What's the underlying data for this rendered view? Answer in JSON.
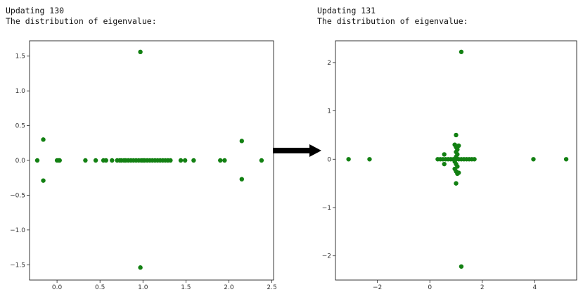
{
  "left_panel": {
    "line1": "Updating 130",
    "line2": "The distribution of eigenvalue:"
  },
  "right_panel": {
    "line1": "Updating 131",
    "line2": "The distribution of eigenvalue:"
  },
  "colors": {
    "points": "#128012",
    "arrow": "#000000",
    "axes": "#222222"
  },
  "chart_data": [
    {
      "type": "scatter",
      "title": "",
      "xlabel": "",
      "ylabel": "",
      "xlim": [
        -0.32,
        2.52
      ],
      "ylim": [
        -1.72,
        1.72
      ],
      "xticks": [
        0.0,
        0.5,
        1.0,
        1.5,
        2.0,
        2.5
      ],
      "xtick_labels": [
        "0.0",
        "0.5",
        "1.0",
        "1.5",
        "2.0",
        "2.5"
      ],
      "yticks": [
        -1.5,
        -1.0,
        -0.5,
        0.0,
        0.5,
        1.0,
        1.5
      ],
      "ytick_labels": [
        "−1.5",
        "−1.0",
        "−0.5",
        "0.0",
        "0.5",
        "1.0",
        "1.5"
      ],
      "grid": false,
      "points": [
        [
          -0.23,
          0
        ],
        [
          -0.16,
          0.3
        ],
        [
          -0.16,
          -0.29
        ],
        [
          0.0,
          0
        ],
        [
          0.02,
          0
        ],
        [
          0.03,
          0
        ],
        [
          0.33,
          0
        ],
        [
          0.45,
          0
        ],
        [
          0.54,
          0
        ],
        [
          0.57,
          0
        ],
        [
          0.64,
          0
        ],
        [
          0.7,
          0
        ],
        [
          0.73,
          0
        ],
        [
          0.75,
          0
        ],
        [
          0.78,
          0
        ],
        [
          0.8,
          0
        ],
        [
          0.83,
          0
        ],
        [
          0.86,
          0
        ],
        [
          0.89,
          0
        ],
        [
          0.92,
          0
        ],
        [
          0.95,
          0
        ],
        [
          0.98,
          0
        ],
        [
          1.0,
          0
        ],
        [
          1.02,
          0
        ],
        [
          1.05,
          0
        ],
        [
          1.08,
          0
        ],
        [
          1.11,
          0
        ],
        [
          1.14,
          0
        ],
        [
          1.17,
          0
        ],
        [
          1.2,
          0
        ],
        [
          1.23,
          0
        ],
        [
          1.26,
          0
        ],
        [
          1.29,
          0
        ],
        [
          1.32,
          0
        ],
        [
          0.97,
          1.56
        ],
        [
          0.97,
          -1.54
        ],
        [
          1.44,
          0
        ],
        [
          1.49,
          0
        ],
        [
          1.59,
          0
        ],
        [
          1.9,
          0
        ],
        [
          1.95,
          0
        ],
        [
          2.15,
          0.28
        ],
        [
          2.15,
          -0.27
        ],
        [
          2.38,
          0
        ]
      ]
    },
    {
      "type": "scatter",
      "title": "",
      "xlabel": "",
      "ylabel": "",
      "xlim": [
        -3.6,
        5.6
      ],
      "ylim": [
        -2.5,
        2.45
      ],
      "xticks": [
        -2,
        0,
        2,
        4
      ],
      "xtick_labels": [
        "−2",
        "0",
        "2",
        "4"
      ],
      "yticks": [
        -2,
        -1,
        0,
        1,
        2
      ],
      "ytick_labels": [
        "−2",
        "−1",
        "0",
        "1",
        "2"
      ],
      "grid": false,
      "points": [
        [
          -3.1,
          0
        ],
        [
          -2.3,
          0
        ],
        [
          0.3,
          0
        ],
        [
          0.4,
          0
        ],
        [
          0.5,
          0
        ],
        [
          0.55,
          0.1
        ],
        [
          0.55,
          -0.1
        ],
        [
          0.6,
          0
        ],
        [
          0.7,
          0
        ],
        [
          0.8,
          0
        ],
        [
          0.9,
          0
        ],
        [
          1.0,
          0
        ],
        [
          1.1,
          0
        ],
        [
          1.2,
          0
        ],
        [
          1.3,
          0
        ],
        [
          1.4,
          0
        ],
        [
          1.5,
          0
        ],
        [
          1.6,
          0
        ],
        [
          1.7,
          0
        ],
        [
          0.95,
          0.3
        ],
        [
          1.0,
          0.25
        ],
        [
          1.05,
          0.2
        ],
        [
          1.0,
          0.15
        ],
        [
          1.05,
          0.1
        ],
        [
          1.0,
          0.05
        ],
        [
          0.95,
          -0.05
        ],
        [
          1.0,
          -0.1
        ],
        [
          1.05,
          -0.15
        ],
        [
          0.95,
          -0.2
        ],
        [
          1.0,
          -0.25
        ],
        [
          1.05,
          -0.3
        ],
        [
          1.1,
          0.28
        ],
        [
          1.1,
          -0.28
        ],
        [
          1.0,
          0.5
        ],
        [
          1.0,
          -0.5
        ],
        [
          1.2,
          2.22
        ],
        [
          1.2,
          -2.22
        ],
        [
          3.95,
          0
        ],
        [
          5.2,
          0
        ]
      ]
    }
  ]
}
